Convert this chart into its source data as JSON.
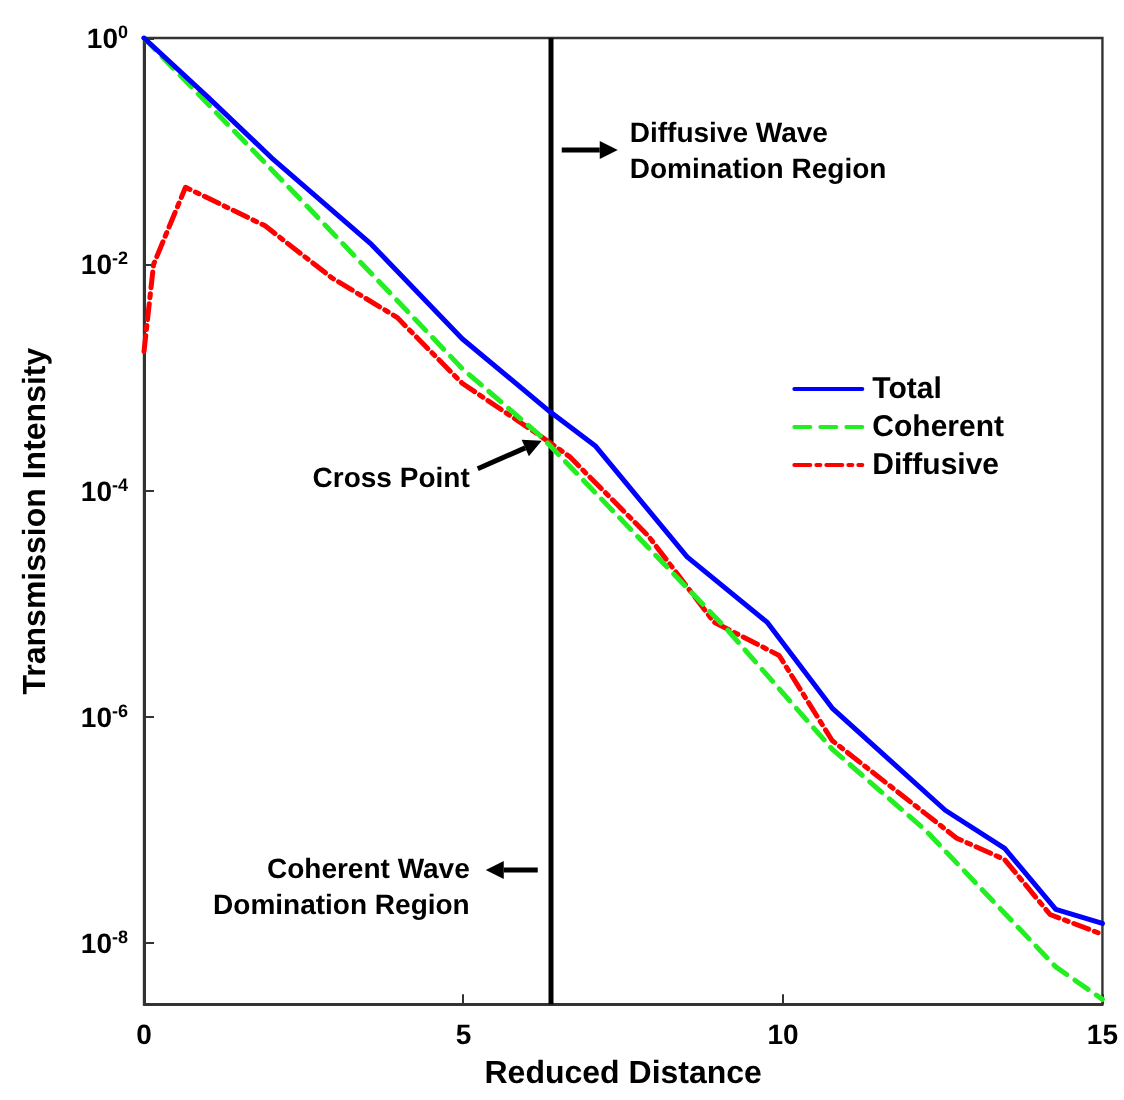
{
  "chart_data": {
    "type": "line",
    "xlabel": "Reduced Distance",
    "ylabel": "Transmission Intensity",
    "log": "y",
    "grid": false,
    "legend": "right",
    "marker": "none",
    "xlim": [
      0,
      15
    ],
    "xticks": [
      0,
      5,
      10,
      15
    ],
    "ylim": [
      2.9e-09,
      1
    ],
    "yticks": [
      {
        "value": 1,
        "label": "10$^{0}$"
      },
      {
        "value": 0.01,
        "label": "10$^{-2}$"
      },
      {
        "value": 0.0001,
        "label": "10$^{-4}$"
      },
      {
        "value": 1e-06,
        "label": "10$^{-6}$"
      },
      {
        "value": 1e-08,
        "label": "10$^{-8}$"
      }
    ],
    "series": [
      {
        "name": "Total",
        "color": "#0000ff",
        "line_style": "solid",
        "x": [
          0,
          1,
          2,
          3.56,
          4.98,
          6.35,
          7.06,
          8.5,
          9.75,
          10.77,
          12.54,
          13.47,
          14.27,
          15
        ],
        "values": [
          1,
          0.3,
          0.087,
          0.015,
          0.0022,
          0.0005,
          0.00025,
          2.6e-05,
          6.9e-06,
          1.2e-06,
          1.5e-07,
          6.9e-08,
          2e-08,
          1.5e-08
        ]
      },
      {
        "name": "Coherent",
        "color": "#22ee22",
        "line_style": "dashed",
        "x": [
          0,
          2.5,
          4.98,
          6.22,
          9.13,
          10.77,
          12.23,
          14.27,
          15
        ],
        "values": [
          1,
          0.035,
          0.0012,
          0.0003,
          5.9e-06,
          5.2e-07,
          1e-07,
          6.2e-09,
          3.2e-09
        ]
      },
      {
        "name": "Diffusive",
        "color": "#ff0000",
        "line_style": "dashdot",
        "x": [
          0,
          0.15,
          0.65,
          1.89,
          2.94,
          3.96,
          4.98,
          6.22,
          6.66,
          7.89,
          8.92,
          9.94,
          10.77,
          12.23,
          12.72,
          13.47,
          14.18,
          15
        ],
        "values": [
          0.0017,
          0.01,
          0.048,
          0.022,
          0.0076,
          0.0034,
          0.00089,
          0.0003,
          0.0002,
          4e-05,
          6.9e-06,
          3.5e-06,
          6.2e-07,
          1.4e-07,
          8.5e-08,
          5.5e-08,
          1.8e-08,
          1.2e-08
        ]
      }
    ],
    "ref_lines": [
      {
        "axis": "x",
        "value": 6.35,
        "color": "#000000"
      }
    ],
    "annotations": [
      "Diffusive Wave\nDomination Region",
      "Coherent Wave\nDomination Region",
      {
        "text": "Cross Point",
        "x": 6.35,
        "y": 0.0003
      }
    ]
  }
}
